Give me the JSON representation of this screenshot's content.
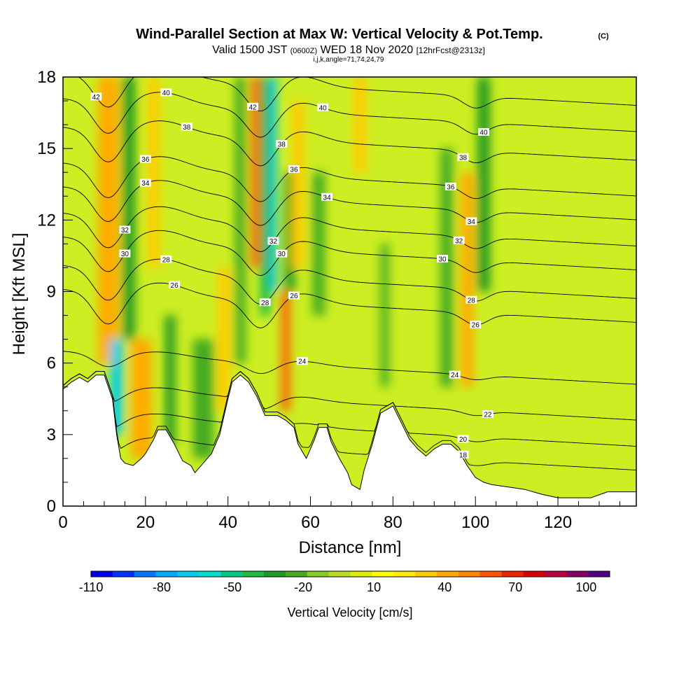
{
  "chart_data": {
    "type": "heatmap",
    "title": "Wind-Parallel Section at Max W: Vertical Velocity & Pot.Temp.",
    "title_mark": "(C)",
    "subtitle": {
      "valid_prefix": "Valid 1500 JST",
      "utc": "(0600Z)",
      "date": "WED 18 Nov 2020",
      "forecast": "[12hrFcst@2313z]"
    },
    "subtitle2": "i,j,k,angle=71,74,24,79",
    "xlabel": "Distance [nm]",
    "ylabel": "Height [Kft MSL]",
    "xlim": [
      0,
      139
    ],
    "ylim": [
      0,
      18
    ],
    "x_ticks": [
      0,
      20,
      40,
      60,
      80,
      100,
      120
    ],
    "y_ticks": [
      0,
      3,
      6,
      9,
      12,
      15,
      18
    ],
    "grid": false,
    "colorbar": {
      "label": "Vertical Velocity [cm/s]",
      "min": -110,
      "max": 110,
      "labels": [
        -110,
        -80,
        -50,
        -20,
        10,
        40,
        70,
        100
      ],
      "colors": [
        "#0000ee",
        "#0033ff",
        "#0077ff",
        "#00aaff",
        "#00ccee",
        "#00e0cc",
        "#00cc88",
        "#22bb44",
        "#229922",
        "#44aa22",
        "#88cc22",
        "#bbdd22",
        "#ddee00",
        "#ffff00",
        "#ffee00",
        "#ffcc00",
        "#ffaa00",
        "#ff8800",
        "#ff5500",
        "#ee2200",
        "#dd0000",
        "#bb0044",
        "#880066",
        "#550088"
      ]
    },
    "velocity_columns": [
      {
        "x": 11,
        "y0": 6,
        "y1": 18,
        "value": 40,
        "width": 5
      },
      {
        "x": 13,
        "y0": 3,
        "y1": 7,
        "value": -70,
        "width": 3
      },
      {
        "x": 16,
        "y0": 7,
        "y1": 18,
        "value": -30,
        "width": 3
      },
      {
        "x": 19,
        "y0": 2,
        "y1": 7,
        "value": 45,
        "width": 5
      },
      {
        "x": 22,
        "y0": 10,
        "y1": 18,
        "value": 30,
        "width": 3
      },
      {
        "x": 26,
        "y0": 2.5,
        "y1": 8,
        "value": -35,
        "width": 2.5
      },
      {
        "x": 34,
        "y0": 2,
        "y1": 7,
        "value": -25,
        "width": 5
      },
      {
        "x": 39,
        "y0": 4,
        "y1": 10,
        "value": 30,
        "width": 3
      },
      {
        "x": 43,
        "y0": 6,
        "y1": 18,
        "value": -25,
        "width": 2.5
      },
      {
        "x": 47,
        "y0": 10,
        "y1": 18,
        "value": 55,
        "width": 2.5
      },
      {
        "x": 49,
        "y0": 8,
        "y1": 18,
        "value": -45,
        "width": 2.5
      },
      {
        "x": 51,
        "y0": 9,
        "y1": 18,
        "value": -70,
        "width": 1.5
      },
      {
        "x": 54,
        "y0": 4,
        "y1": 9,
        "value": 55,
        "width": 2
      },
      {
        "x": 55,
        "y0": 9,
        "y1": 14,
        "value": -30,
        "width": 2.5
      },
      {
        "x": 57,
        "y0": 10,
        "y1": 17,
        "value": 35,
        "width": 3
      },
      {
        "x": 62,
        "y0": 8,
        "y1": 14,
        "value": -20,
        "width": 3
      },
      {
        "x": 72,
        "y0": 14,
        "y1": 18,
        "value": 35,
        "width": 3
      },
      {
        "x": 78,
        "y0": 5,
        "y1": 11,
        "value": -20,
        "width": 2
      },
      {
        "x": 93,
        "y0": 5,
        "y1": 15,
        "value": -25,
        "width": 3
      },
      {
        "x": 98,
        "y0": 5,
        "y1": 14,
        "value": 40,
        "width": 3
      },
      {
        "x": 102,
        "y0": 9,
        "y1": 18,
        "value": -30,
        "width": 3
      }
    ],
    "terrain": [
      {
        "x": 0,
        "h": 4.9
      },
      {
        "x": 2,
        "h": 5.2
      },
      {
        "x": 4,
        "h": 5.4
      },
      {
        "x": 6,
        "h": 5.2
      },
      {
        "x": 8,
        "h": 5.5
      },
      {
        "x": 10,
        "h": 5.5
      },
      {
        "x": 12,
        "h": 4.5
      },
      {
        "x": 13,
        "h": 3.0
      },
      {
        "x": 14,
        "h": 2.0
      },
      {
        "x": 15,
        "h": 1.8
      },
      {
        "x": 17,
        "h": 1.7
      },
      {
        "x": 19,
        "h": 2.0
      },
      {
        "x": 20,
        "h": 2.2
      },
      {
        "x": 22,
        "h": 2.8
      },
      {
        "x": 23,
        "h": 3.2
      },
      {
        "x": 25,
        "h": 3.2
      },
      {
        "x": 27,
        "h": 2.6
      },
      {
        "x": 29,
        "h": 1.9
      },
      {
        "x": 31,
        "h": 1.7
      },
      {
        "x": 32,
        "h": 1.4
      },
      {
        "x": 34,
        "h": 1.8
      },
      {
        "x": 36,
        "h": 2.2
      },
      {
        "x": 38,
        "h": 3.0
      },
      {
        "x": 40,
        "h": 4.5
      },
      {
        "x": 41,
        "h": 5.2
      },
      {
        "x": 43,
        "h": 5.5
      },
      {
        "x": 45,
        "h": 5.2
      },
      {
        "x": 47,
        "h": 4.6
      },
      {
        "x": 49,
        "h": 3.8
      },
      {
        "x": 52,
        "h": 3.8
      },
      {
        "x": 54,
        "h": 3.6
      },
      {
        "x": 56,
        "h": 3.3
      },
      {
        "x": 57,
        "h": 2.6
      },
      {
        "x": 58,
        "h": 2.3
      },
      {
        "x": 59,
        "h": 2.0
      },
      {
        "x": 61,
        "h": 2.8
      },
      {
        "x": 62,
        "h": 3.3
      },
      {
        "x": 64,
        "h": 3.3
      },
      {
        "x": 65,
        "h": 2.7
      },
      {
        "x": 67,
        "h": 2.0
      },
      {
        "x": 69,
        "h": 1.4
      },
      {
        "x": 70,
        "h": 0.9
      },
      {
        "x": 72,
        "h": 0.7
      },
      {
        "x": 73,
        "h": 1.5
      },
      {
        "x": 75,
        "h": 2.6
      },
      {
        "x": 77,
        "h": 3.9
      },
      {
        "x": 80,
        "h": 4.2
      },
      {
        "x": 82,
        "h": 3.5
      },
      {
        "x": 84,
        "h": 2.8
      },
      {
        "x": 86,
        "h": 2.4
      },
      {
        "x": 88,
        "h": 2.1
      },
      {
        "x": 90,
        "h": 2.4
      },
      {
        "x": 92,
        "h": 2.6
      },
      {
        "x": 94,
        "h": 2.6
      },
      {
        "x": 96,
        "h": 2.3
      },
      {
        "x": 98,
        "h": 1.7
      },
      {
        "x": 100,
        "h": 1.2
      },
      {
        "x": 102,
        "h": 1.0
      },
      {
        "x": 104,
        "h": 0.9
      },
      {
        "x": 108,
        "h": 0.8
      },
      {
        "x": 112,
        "h": 0.7
      },
      {
        "x": 116,
        "h": 0.5
      },
      {
        "x": 120,
        "h": 0.35
      },
      {
        "x": 128,
        "h": 0.35
      },
      {
        "x": 132,
        "h": 0.6
      },
      {
        "x": 139,
        "h": 0.6
      }
    ],
    "theta_contours": [
      {
        "label": "18",
        "base": 2.2,
        "labels_at": [
          97
        ]
      },
      {
        "label": "20",
        "base": 3.2,
        "labels_at": [
          97
        ]
      },
      {
        "label": "22",
        "base": 4.3,
        "labels_at": [
          103
        ]
      },
      {
        "label": "24",
        "base": 5.8,
        "labels_at": [
          58,
          95
        ]
      },
      {
        "label": "26",
        "base": 8.4,
        "labels_at": [
          27,
          56,
          100
        ]
      },
      {
        "label": "28",
        "base": 9.4,
        "labels_at": [
          25,
          49,
          99
        ]
      },
      {
        "label": "30",
        "base": 10.6,
        "labels_at": [
          15,
          53,
          92
        ]
      },
      {
        "label": "32",
        "base": 11.6,
        "labels_at": [
          15,
          51,
          96
        ]
      },
      {
        "label": "34",
        "base": 12.7,
        "labels_at": [
          20,
          64,
          99
        ]
      },
      {
        "label": "36",
        "base": 13.7,
        "labels_at": [
          20,
          56,
          94
        ]
      },
      {
        "label": "38",
        "base": 15.2,
        "labels_at": [
          30,
          53,
          97
        ]
      },
      {
        "label": "40",
        "base": 16.4,
        "labels_at": [
          25,
          63,
          102
        ]
      },
      {
        "label": "42",
        "base": 17.5,
        "labels_at": [
          8,
          46
        ]
      }
    ]
  }
}
